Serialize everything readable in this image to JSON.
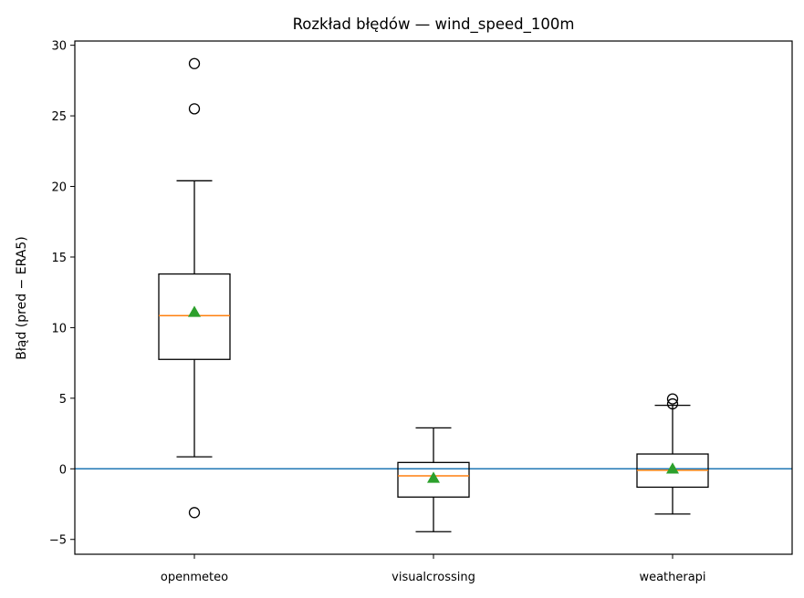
{
  "chart_data": {
    "type": "box",
    "title": "Rozkład błędów — wind_speed_100m",
    "xlabel": "",
    "ylabel": "Błąd (pred − ERA5)",
    "ylim": [
      -6.05,
      30.3
    ],
    "yticks": [
      -5,
      0,
      5,
      10,
      15,
      20,
      25,
      30
    ],
    "grid": false,
    "reference_line": {
      "y": 0,
      "color": "#1f77b4"
    },
    "colors": {
      "box": "#000000",
      "median": "#ff7f0e",
      "mean": "#2ca02c",
      "reference": "#1f77b4"
    },
    "categories": [
      "openmeteo",
      "visualcrossing",
      "weatherapi"
    ],
    "boxes": [
      {
        "name": "openmeteo",
        "whisker_low": 0.85,
        "q1": 7.75,
        "median": 10.85,
        "q3": 13.8,
        "whisker_high": 20.4,
        "mean": 11.1,
        "outliers": [
          -3.1,
          25.5,
          28.7
        ]
      },
      {
        "name": "visualcrossing",
        "whisker_low": -4.45,
        "q1": -2.0,
        "median": -0.5,
        "q3": 0.45,
        "whisker_high": 2.9,
        "mean": -0.65,
        "outliers": []
      },
      {
        "name": "weatherapi",
        "whisker_low": -3.2,
        "q1": -1.3,
        "median": -0.1,
        "q3": 1.05,
        "whisker_high": 4.5,
        "mean": 0.0,
        "outliers": [
          4.6,
          4.95
        ]
      }
    ]
  }
}
